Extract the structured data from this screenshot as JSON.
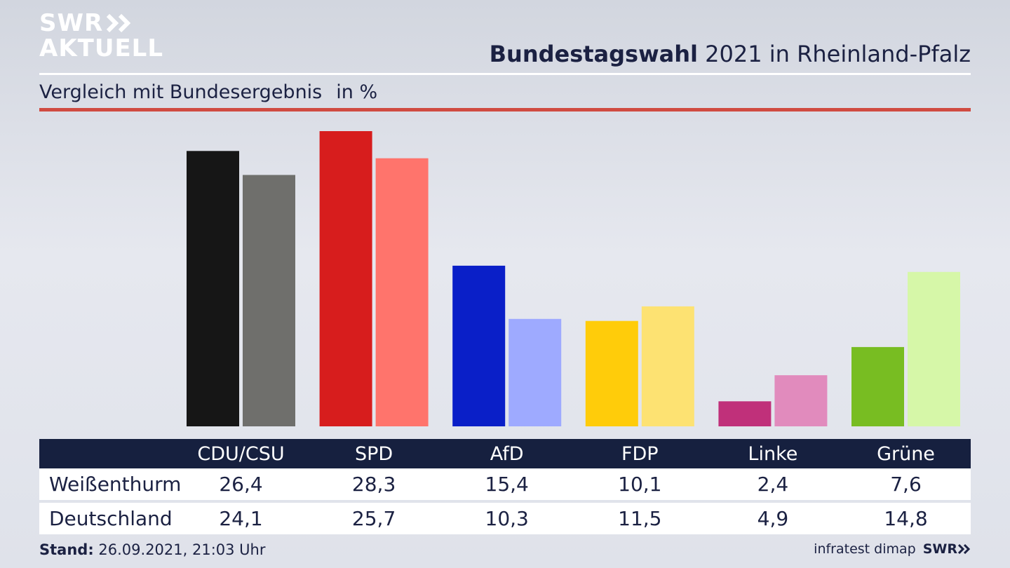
{
  "brand": {
    "line1": "SWR",
    "line2": "AKTUELL"
  },
  "header": {
    "title_bold": "Bundestagswahl",
    "title_rest": " 2021 in Rheinland-Pfalz"
  },
  "subtitle": {
    "text": "Vergleich mit Bundesergebnis",
    "unit": "in %"
  },
  "table": {
    "columns": [
      "CDU/CSU",
      "SPD",
      "AfD",
      "FDP",
      "Linke",
      "Grüne"
    ],
    "rows": [
      {
        "label": "Weißenthurm",
        "values": [
          "26,4",
          "28,3",
          "15,4",
          "10,1",
          "2,4",
          "7,6"
        ]
      },
      {
        "label": "Deutschland",
        "values": [
          "24,1",
          "25,7",
          "10,3",
          "11,5",
          "4,9",
          "14,8"
        ]
      }
    ]
  },
  "footer": {
    "stand_label": "Stand:",
    "stand_value": " 26.09.2021, 21:03 Uhr",
    "source": "infratest dimap",
    "source_brand": "SWR"
  },
  "chart_data": {
    "type": "bar",
    "title": "Bundestagswahl 2021 in Rheinland-Pfalz",
    "subtitle": "Vergleich mit Bundesergebnis",
    "ylabel": "in %",
    "categories": [
      "CDU/CSU",
      "SPD",
      "AfD",
      "FDP",
      "Linke",
      "Grüne"
    ],
    "series": [
      {
        "name": "Weißenthurm",
        "values": [
          26.4,
          28.3,
          15.4,
          10.1,
          2.4,
          7.6
        ],
        "colors": [
          "#161616",
          "#d71d1d",
          "#0a1fc8",
          "#ffcc0a",
          "#c0307a",
          "#78bd22"
        ]
      },
      {
        "name": "Deutschland",
        "values": [
          24.1,
          25.7,
          10.3,
          11.5,
          4.9,
          14.8
        ],
        "colors": [
          "#6f6f6c",
          "#ff746c",
          "#9eaaff",
          "#fde272",
          "#e18bbd",
          "#d6f7a8"
        ]
      }
    ],
    "ylim": [
      0,
      28.3
    ],
    "grid": false,
    "legend": "table-below"
  }
}
